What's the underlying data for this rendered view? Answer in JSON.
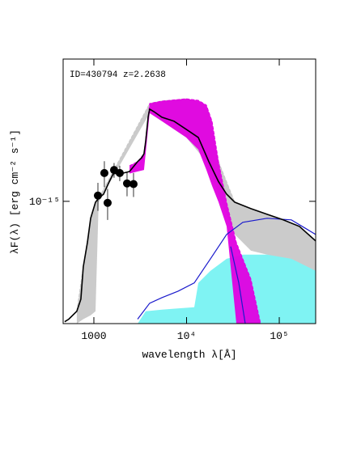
{
  "chart_data": {
    "type": "sed",
    "annotation": "ID=430794 z=2.2638",
    "xlabel": "wavelength λ[Å]",
    "ylabel": "λF(λ) [erg cm⁻² s⁻¹]",
    "xscale": "log",
    "yscale": "log",
    "xlim": [
      466,
      247000
    ],
    "ylim": [
      1.95e-16,
      6.7e-15
    ],
    "xticks": [
      1000,
      {
        "value": 10000,
        "label": "10⁴"
      },
      {
        "value": 100000,
        "label": "10⁵"
      }
    ],
    "yticks": [
      {
        "value": 1e-15,
        "label": "10⁻¹⁵"
      }
    ],
    "series": [
      {
        "kind": "band",
        "color": "#c8c8c8",
        "x": [
          655,
          769,
          923,
          1041,
          1127,
          4000,
          5415,
          9890,
          16370,
          22130,
          33090,
          49430,
          73920,
          110600,
          165200,
          247000
        ],
        "high": [
          2.3e-16,
          4.17e-16,
          7.97e-16,
          9.89e-16,
          1.04e-15,
          3.7e-15,
          3.82e-15,
          3.94e-15,
          3.62e-15,
          1.7e-15,
          9.89e-16,
          9.07e-16,
          8.41e-16,
          7.8e-16,
          7.15e-16,
          5.89e-16
        ],
        "low": [
          1.95e-16,
          2.07e-16,
          2.18e-16,
          2.3e-16,
          9.89e-16,
          3.25e-15,
          2.92e-15,
          2.35e-15,
          1.7e-15,
          1.1e-15,
          6.42e-16,
          5.17e-16,
          4.9e-16,
          4.64e-16,
          4.26e-16,
          3.95e-16
        ]
      },
      {
        "kind": "area",
        "color": "#7ff3f3",
        "x": [
          2960,
          3622,
          5415,
          12100,
          13390,
          18110,
          27040,
          40440,
          73920,
          135200,
          247000
        ],
        "values": [
          1.95e-16,
          2.3e-16,
          2.35e-16,
          2.43e-16,
          3.36e-16,
          3.95e-16,
          4.64e-16,
          4.9e-16,
          4.9e-16,
          4.64e-16,
          3.95e-16
        ]
      },
      {
        "kind": "band",
        "color": "#e000e0",
        "x": [
          2423,
          2960,
          3475,
          4000,
          5415,
          9890,
          13390,
          16370,
          18850,
          22130,
          27040,
          34440,
          40440,
          49430,
          62950
        ],
        "high": [
          1.61e-15,
          1.7e-15,
          1.89e-15,
          3.7e-15,
          3.82e-15,
          3.94e-15,
          3.86e-15,
          3.62e-15,
          2.92e-15,
          1.7e-15,
          9.89e-16,
          5.77e-16,
          4.64e-16,
          3.54e-16,
          1.95e-16
        ],
        "low": [
          1.45e-15,
          1.49e-15,
          1.52e-15,
          3.25e-15,
          2.92e-15,
          2.35e-15,
          2e-15,
          1.52e-15,
          1.23e-15,
          9.89e-16,
          7.15e-16,
          1.95e-16,
          1.95e-16,
          1.95e-16,
          1.95e-16
        ]
      },
      {
        "kind": "line",
        "color": "#1a1acc",
        "x": [
          2960,
          4000,
          5415,
          8091,
          12100,
          18110,
          27040,
          40440,
          73920,
          135200,
          247000
        ],
        "values": [
          2.07e-16,
          2.56e-16,
          2.76e-16,
          3.01e-16,
          3.36e-16,
          4.64e-16,
          6.42e-16,
          7.55e-16,
          7.97e-16,
          7.8e-16,
          6.42e-16
        ]
      },
      {
        "kind": "line",
        "color": "#1a1acc",
        "x": [
          29920,
          36560,
          42950
        ],
        "values": [
          5.46e-16,
          3.36e-16,
          1.95e-16
        ]
      },
      {
        "kind": "line",
        "color": "#000000",
        "x": [
          484,
          536,
          655,
          724,
          769,
          851,
          923,
          1041,
          1127,
          1273,
          1466,
          1621,
          1982,
          2423,
          2960,
          3273,
          3475,
          3622,
          3846,
          4000,
          4426,
          5415,
          7328,
          9890,
          13390,
          17380,
          22130,
          27040,
          33090,
          49430,
          73920,
          110600,
          165200,
          247000
        ],
        "values": [
          2e-16,
          2.07e-16,
          2.3e-16,
          2.7e-16,
          4.17e-16,
          5.77e-16,
          7.97e-16,
          9.89e-16,
          1.04e-15,
          1.1e-15,
          1.3e-15,
          1.45e-15,
          1.45e-15,
          1.49e-15,
          1.7e-15,
          1.79e-15,
          1.89e-15,
          2.23e-15,
          3.08e-15,
          3.43e-15,
          3.32e-15,
          3.08e-15,
          2.92e-15,
          2.62e-15,
          2.35e-15,
          1.7e-15,
          1.3e-15,
          1.1e-15,
          9.89e-16,
          9.07e-16,
          8.41e-16,
          7.8e-16,
          7.15e-16,
          5.89e-16
        ]
      },
      {
        "kind": "points",
        "color": "#000000",
        "x": [
          1106,
          1298,
          1407,
          1652,
          1902,
          2280,
          2678
        ],
        "values": [
          1.08e-15,
          1.46e-15,
          9.8e-16,
          1.52e-15,
          1.46e-15,
          1.27e-15,
          1.26e-15
        ],
        "yerr": [
          2e-16,
          2.5e-16,
          2e-16,
          1.5e-16,
          1.5e-16,
          2e-16,
          2e-16
        ]
      }
    ]
  }
}
